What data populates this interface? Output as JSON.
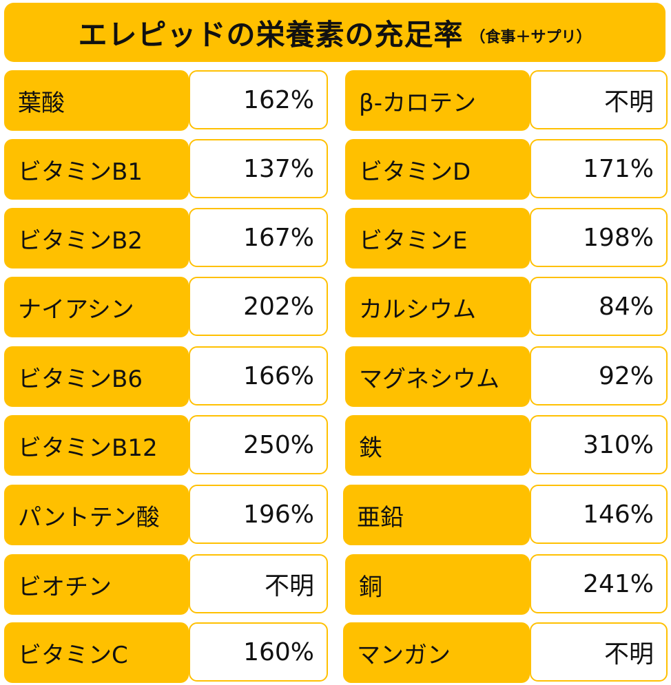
{
  "title": {
    "main": "エレピッドの栄養素の充足率",
    "sub": "（食事＋サプリ）"
  },
  "left_column": [
    {
      "label": "葉酸",
      "value": "162%"
    },
    {
      "label": "ビタミンB1",
      "value": "137%"
    },
    {
      "label": "ビタミンB2",
      "value": "167%"
    },
    {
      "label": "ナイアシン",
      "value": "202%"
    },
    {
      "label": "ビタミンB6",
      "value": "166%"
    },
    {
      "label": "ビタミンB12",
      "value": "250%"
    },
    {
      "label": "パントテン酸",
      "value": "196%"
    },
    {
      "label": "ビオチン",
      "value": "不明"
    },
    {
      "label": "ビタミンC",
      "value": "160%"
    }
  ],
  "right_column": [
    {
      "label": "β-カロテン",
      "value": "不明"
    },
    {
      "label": "ビタミンD",
      "value": "171%"
    },
    {
      "label": "ビタミンE",
      "value": "198%"
    },
    {
      "label": "カルシウム",
      "value": "84%"
    },
    {
      "label": "マグネシウム",
      "value": "92%"
    },
    {
      "label": "鉄",
      "value": "310%"
    },
    {
      "label": "亜鉛",
      "value": "146%"
    },
    {
      "label": "銅",
      "value": "241%"
    },
    {
      "label": "マンガン",
      "value": "不明"
    }
  ],
  "colors": {
    "accent": "#FFC000",
    "background": "#FFFFFF",
    "text": "#111111"
  }
}
